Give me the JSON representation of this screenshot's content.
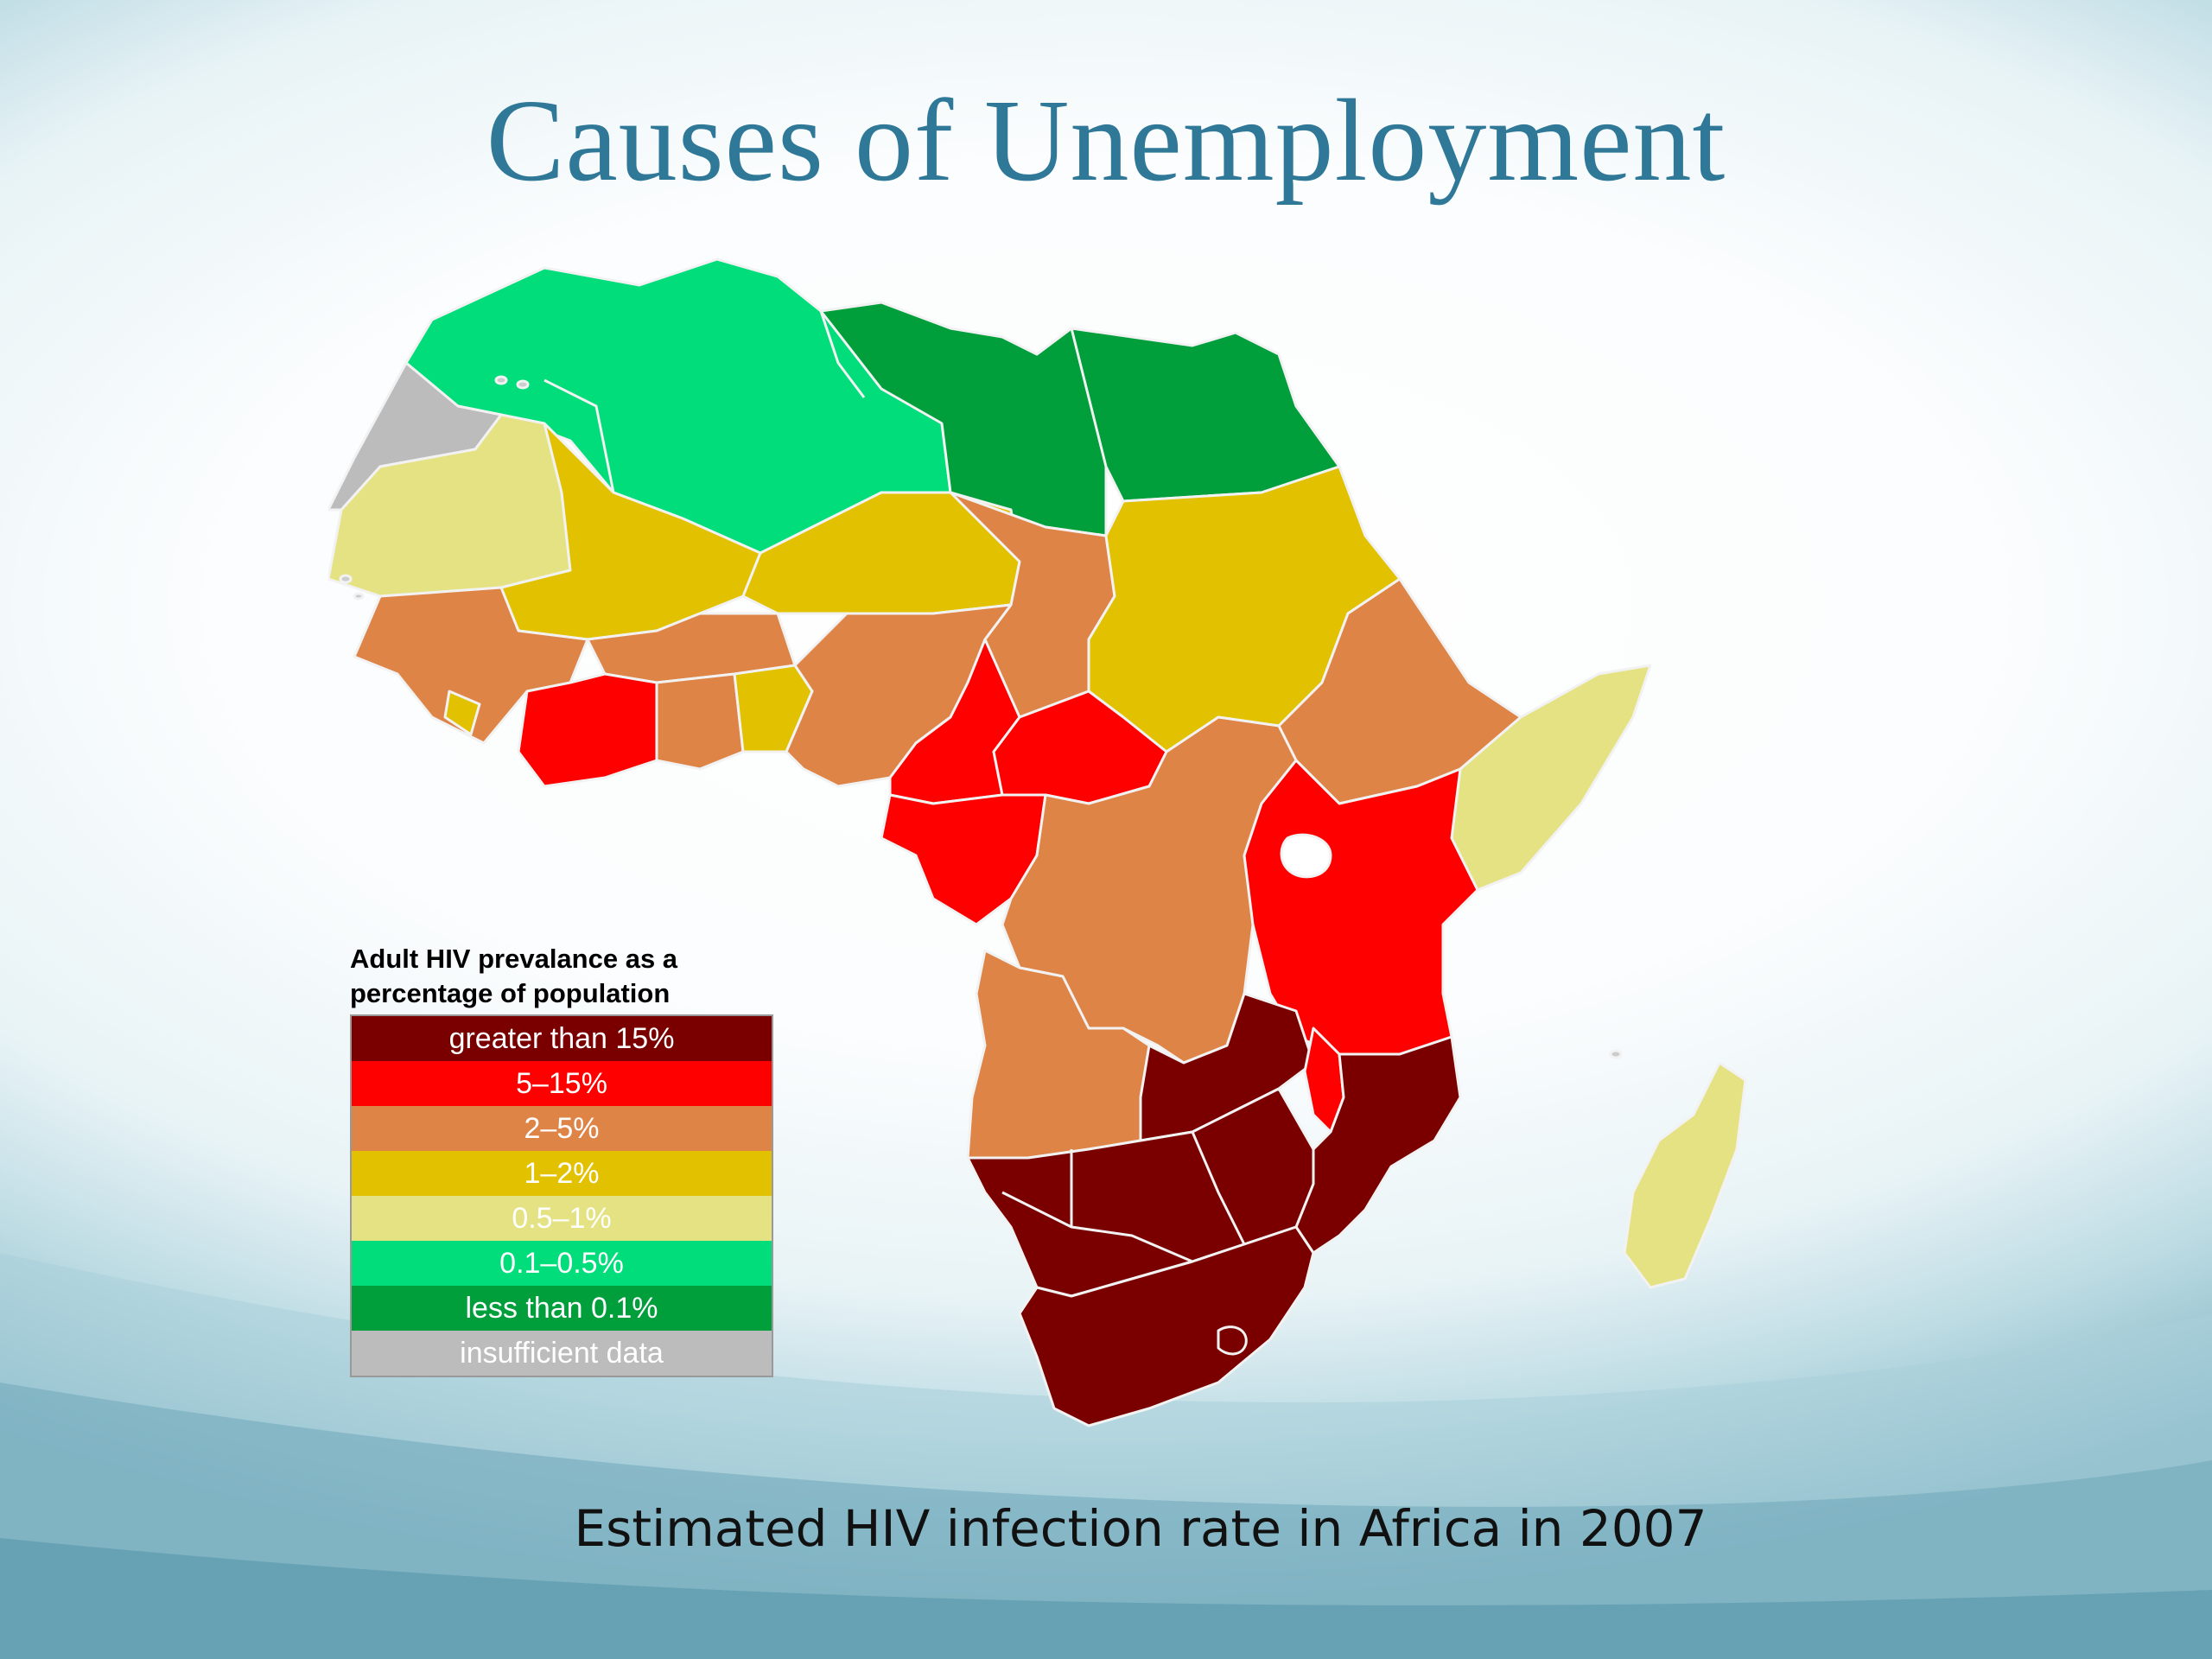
{
  "slide": {
    "title": "Causes of Unemployment",
    "caption": "Estimated HIV infection rate in Africa in 2007"
  },
  "legend": {
    "title": "Adult HIV prevalance as a percentage of population",
    "items": [
      {
        "label": "greater than 15%",
        "color": "#7a0000"
      },
      {
        "label": "5–15%",
        "color": "#fe0000"
      },
      {
        "label": "2–5%",
        "color": "#de8447"
      },
      {
        "label": "1–2%",
        "color": "#e2c100"
      },
      {
        "label": "0.5–1%",
        "color": "#e5e283"
      },
      {
        "label": "0.1–0.5%",
        "color": "#00dd7a"
      },
      {
        "label": "less than 0.1%",
        "color": "#009f3c"
      },
      {
        "label": "insufficient data",
        "color": "#bcbcbc"
      }
    ]
  },
  "map_regions": [
    {
      "name": "morocco-algeria-tunisia",
      "category": "0.1–0.5%"
    },
    {
      "name": "libya-egypt",
      "category": "less than 0.1%"
    },
    {
      "name": "western-sahara",
      "category": "insufficient data"
    },
    {
      "name": "mauritania-senegal",
      "category": "0.5–1%"
    },
    {
      "name": "mali-niger-sudan",
      "category": "1–2%"
    },
    {
      "name": "chad-nigeria-west-africa-ethiopia-drc-angola",
      "category": "2–5%"
    },
    {
      "name": "cote-divoire-cameroon-car-congo-east-africa-malawi",
      "category": "5–15%"
    },
    {
      "name": "southern-africa",
      "category": "greater than 15%"
    },
    {
      "name": "somalia-madagascar",
      "category": "0.5–1%"
    }
  ]
}
